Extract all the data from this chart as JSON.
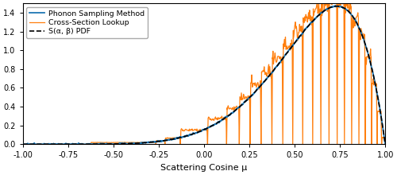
{
  "xlabel": "Scattering Cosine μ",
  "xlim": [
    -1.0,
    1.0
  ],
  "ylim": [
    0.0,
    1.5
  ],
  "yticks": [
    0.0,
    0.2,
    0.4,
    0.6,
    0.8,
    1.0,
    1.2,
    1.4
  ],
  "xtick_vals": [
    -1.0,
    -0.75,
    -0.5,
    -0.25,
    0.0,
    0.25,
    0.5,
    0.75,
    1.0
  ],
  "xtick_labels": [
    "-1.00",
    "-0.75",
    "-0.50",
    "-0.25",
    "0.00",
    "0.25",
    "0.50",
    "0.75",
    "1.00"
  ],
  "legend_labels": [
    "Phonon Sampling Method",
    "Cross-Section Lookup",
    "S(α, β) PDF"
  ],
  "colors_blue": "#1f77b4",
  "colors_orange": "#ff7f0e",
  "colors_black": "#000000",
  "beta_a": 7.5,
  "beta_b": 2.0,
  "peak_scale": 1.47,
  "noise_std": 0.012,
  "step_boundaries": [
    -1.0,
    -0.83,
    -0.78,
    -0.625,
    -0.265,
    -0.215,
    -0.13,
    0.02,
    0.125,
    0.195,
    0.255,
    0.315,
    0.375,
    0.435,
    0.49,
    0.545,
    0.6,
    0.645,
    0.69,
    0.735,
    0.775,
    0.815,
    0.855,
    0.89,
    0.925,
    0.955,
    0.98,
    1.0
  ]
}
